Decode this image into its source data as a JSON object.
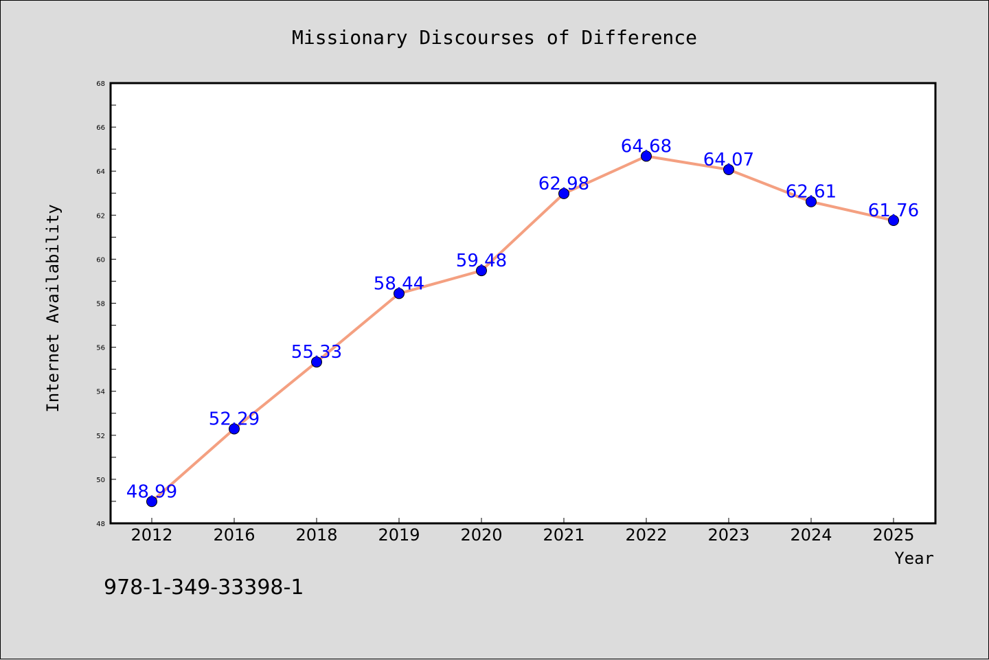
{
  "chart_data": {
    "type": "line",
    "title": "Missionary Discourses of Difference",
    "xlabel": "Year",
    "ylabel": "Internet Availability",
    "categories": [
      "2012",
      "2016",
      "2018",
      "2019",
      "2020",
      "2021",
      "2022",
      "2023",
      "2024",
      "2025"
    ],
    "series": [
      {
        "values": [
          48.99,
          52.29,
          55.33,
          58.44,
          59.48,
          62.98,
          64.68,
          64.07,
          62.61,
          61.76
        ],
        "labels": [
          "48.99",
          "52.29",
          "55.33",
          "58.44",
          "59.48",
          "62.98",
          "64.68",
          "64.07",
          "62.61",
          "61.76"
        ]
      }
    ],
    "ylim": [
      48,
      68
    ],
    "yticks": [
      48,
      50,
      52,
      54,
      56,
      58,
      60,
      62,
      64,
      66,
      68
    ],
    "grid": false,
    "legend": "none",
    "colors": {
      "line": "#f4a081",
      "marker": "#0000ff",
      "label": "#0000ff",
      "background": "#dcdcdc",
      "plot_background": "#ffffff"
    }
  },
  "footer": {
    "isbn": "978-1-349-33398-1"
  }
}
